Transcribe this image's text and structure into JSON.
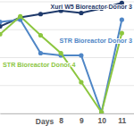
{
  "chart_data": {
    "type": "line",
    "x_label": "Days",
    "x": [
      5,
      6,
      7,
      8,
      9,
      10,
      11
    ],
    "series": [
      {
        "name": "Xuri W5 Bioreactor Donor 3",
        "color": "#1f3a6b",
        "marker": "circle",
        "values": [
          78,
          86,
          89,
          92,
          90,
          94,
          99
        ]
      },
      {
        "name": "STR Bioreactor Donor 3",
        "color": "#4f86c6",
        "marker": "circle",
        "values": [
          82,
          84,
          54,
          52,
          52,
          1,
          84
        ]
      },
      {
        "name": "STR Bioreactor Donor 4",
        "color": "#8cc63f",
        "marker": "circle",
        "values": [
          71,
          87,
          70,
          54,
          28,
          1,
          72
        ]
      }
    ],
    "xlim": [
      5,
      11.6
    ],
    "xticks": [
      8,
      9,
      10,
      11
    ],
    "ylim": [
      0,
      100
    ],
    "yticks": [
      0,
      25,
      50,
      75,
      100
    ],
    "grid": true,
    "tick_labels": "x"
  }
}
